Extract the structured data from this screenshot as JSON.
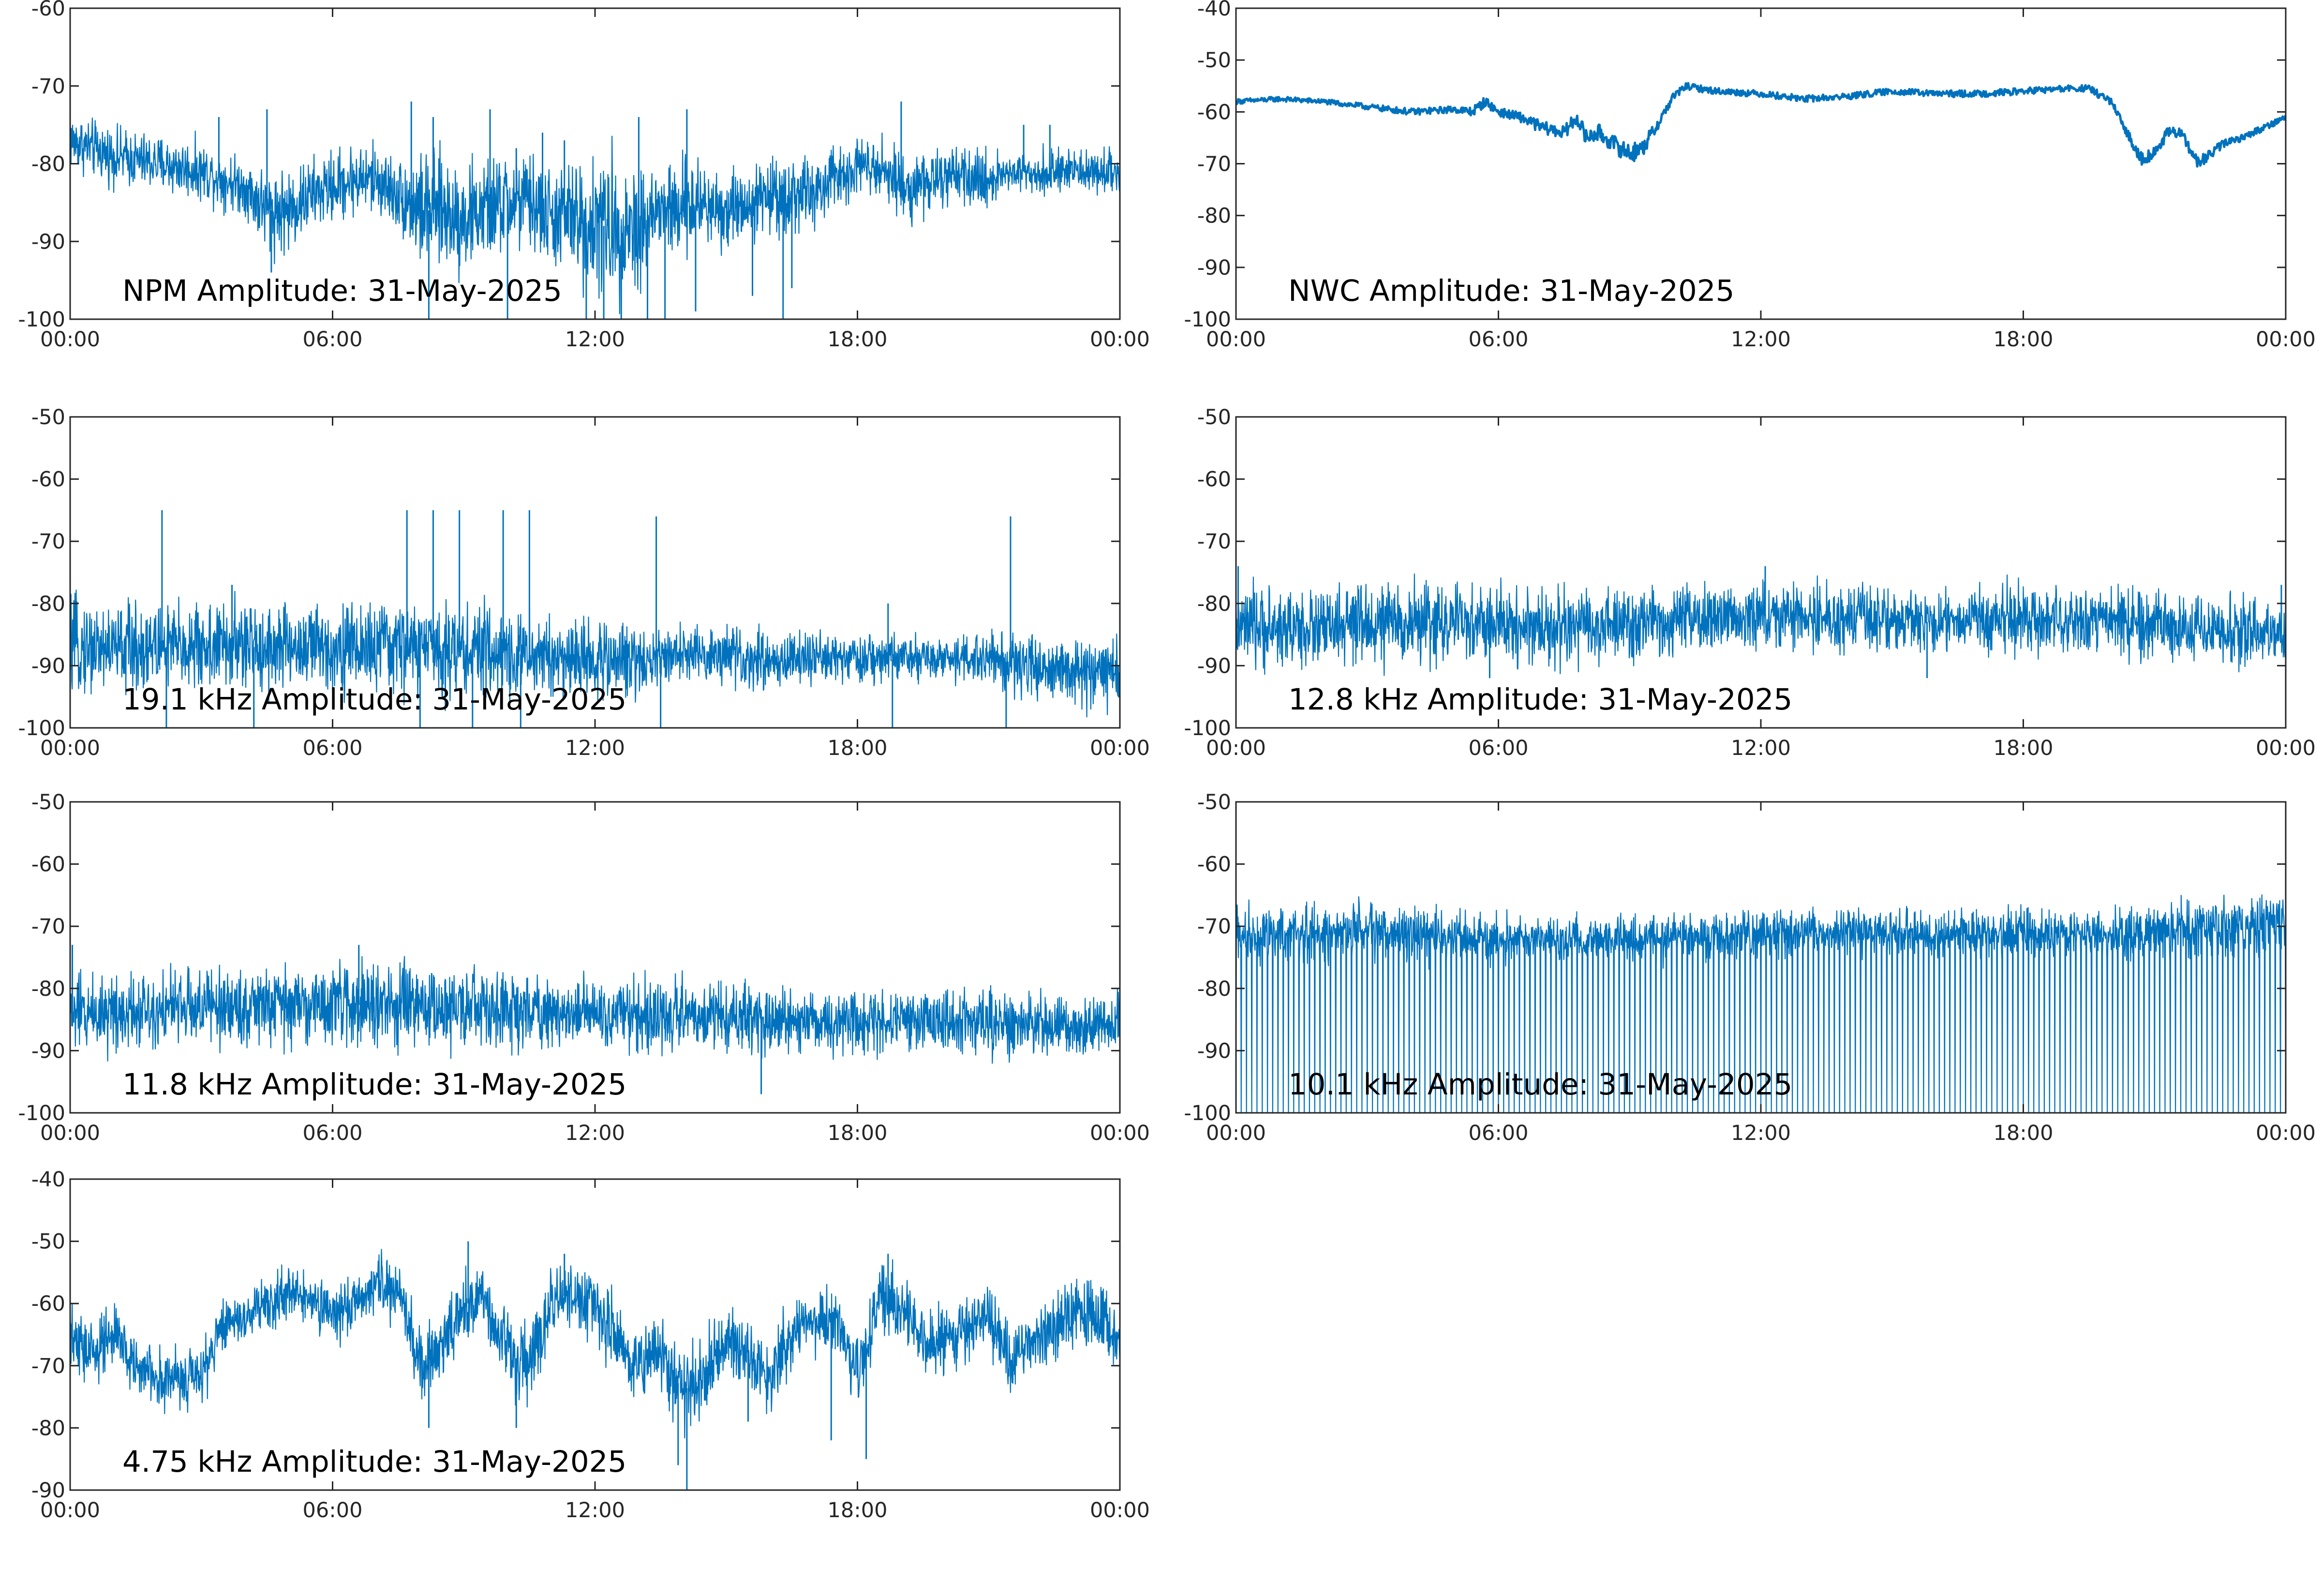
{
  "colors": {
    "series": "#0072BD",
    "axes": "#262626",
    "background": "#FFFFFF"
  },
  "chart_data": [
    {
      "type": "line",
      "title": "NPM Amplitude: 31-May-2025",
      "xticks": [
        "00:00",
        "06:00",
        "12:00",
        "18:00",
        "00:00"
      ],
      "ylim": [
        -100,
        -60
      ],
      "yticks": [
        -100,
        -90,
        -80,
        -70,
        -60
      ],
      "grid": false,
      "series": [
        {
          "x_hours": [
            0,
            1,
            2,
            3,
            4,
            4.5,
            5,
            5.5,
            6,
            6.5,
            7,
            7.5,
            8,
            8.5,
            9,
            9.5,
            10,
            10.5,
            11,
            11.5,
            12,
            12.5,
            13,
            13.5,
            14,
            14.5,
            15,
            15.5,
            16,
            16.5,
            17,
            17.5,
            18,
            18.5,
            19,
            20,
            21,
            21.5,
            22,
            23,
            24
          ],
          "center": [
            -77,
            -79,
            -80,
            -81,
            -83,
            -86,
            -86,
            -84,
            -83,
            -82,
            -82,
            -84,
            -86,
            -86,
            -87,
            -86,
            -85,
            -85,
            -87,
            -87,
            -88,
            -88,
            -88,
            -86,
            -86,
            -85,
            -86,
            -85,
            -84,
            -84,
            -84,
            -82,
            -80,
            -80,
            -83,
            -82,
            -82,
            -81,
            -81,
            -81,
            -81
          ],
          "spread": [
            4,
            4,
            4,
            4,
            4,
            6,
            6,
            5,
            5,
            5,
            5,
            5,
            8,
            8,
            8,
            7,
            7,
            7,
            7,
            8,
            10,
            10,
            9,
            7,
            7,
            6,
            6,
            5,
            5,
            6,
            5,
            5,
            4,
            4,
            5,
            4,
            4,
            3,
            3,
            3,
            3
          ],
          "spikes": [
            {
              "x": 3.4,
              "y": -74
            },
            {
              "x": 4.5,
              "y": -73
            },
            {
              "x": 4.6,
              "y": -94
            },
            {
              "x": 7.8,
              "y": -72
            },
            {
              "x": 8.2,
              "y": -100
            },
            {
              "x": 8.3,
              "y": -74
            },
            {
              "x": 9.6,
              "y": -73
            },
            {
              "x": 10.0,
              "y": -100
            },
            {
              "x": 10.2,
              "y": -78
            },
            {
              "x": 10.8,
              "y": -76
            },
            {
              "x": 11.3,
              "y": -77
            },
            {
              "x": 11.8,
              "y": -100
            },
            {
              "x": 12.2,
              "y": -100
            },
            {
              "x": 12.6,
              "y": -100
            },
            {
              "x": 13.0,
              "y": -74
            },
            {
              "x": 13.2,
              "y": -100
            },
            {
              "x": 13.6,
              "y": -100
            },
            {
              "x": 14.1,
              "y": -73
            },
            {
              "x": 14.3,
              "y": -99
            },
            {
              "x": 15.6,
              "y": -97
            },
            {
              "x": 16.3,
              "y": -100
            },
            {
              "x": 16.5,
              "y": -96
            },
            {
              "x": 19.0,
              "y": -72
            },
            {
              "x": 19.2,
              "y": -86
            },
            {
              "x": 21.8,
              "y": -75
            },
            {
              "x": 22.4,
              "y": -75
            }
          ]
        }
      ]
    },
    {
      "type": "line",
      "title": "NWC Amplitude: 31-May-2025",
      "xticks": [
        "00:00",
        "06:00",
        "12:00",
        "18:00",
        "00:00"
      ],
      "ylim": [
        -100,
        -40
      ],
      "yticks": [
        -100,
        -90,
        -80,
        -70,
        -60,
        -50,
        -40
      ],
      "grid": false,
      "series": [
        {
          "x_hours": [
            0,
            1,
            2,
            3,
            4,
            5,
            5.4,
            5.7,
            6,
            6.5,
            7,
            7.5,
            7.8,
            8,
            8.3,
            8.6,
            9,
            9.3,
            9.6,
            10,
            10.3,
            10.6,
            11,
            12,
            13,
            14,
            15,
            16,
            17,
            18,
            19,
            19.5,
            20,
            20.3,
            20.7,
            21,
            21.3,
            21.6,
            22,
            22.3,
            22.6,
            23,
            23.5,
            24
          ],
          "center": [
            -58,
            -57.5,
            -58,
            -59,
            -60,
            -59.5,
            -60,
            -58,
            -60,
            -61,
            -63,
            -64,
            -61,
            -65,
            -64,
            -66,
            -68,
            -67,
            -63,
            -57,
            -55,
            -55.5,
            -56,
            -56.5,
            -57.5,
            -57,
            -56,
            -56.5,
            -56.5,
            -56,
            -55.5,
            -55.5,
            -58,
            -63,
            -69,
            -68,
            -64,
            -64,
            -70,
            -68,
            -66,
            -65,
            -63,
            -61
          ],
          "spread": [
            0.6,
            0.6,
            0.6,
            0.7,
            0.8,
            0.8,
            1.2,
            1.2,
            1,
            1.2,
            1.5,
            1.5,
            1.8,
            2,
            2,
            2,
            2.5,
            2,
            1.5,
            1,
            0.8,
            0.8,
            0.8,
            0.8,
            0.8,
            0.8,
            0.8,
            0.8,
            0.8,
            0.8,
            0.8,
            0.8,
            1,
            1.2,
            1.5,
            1.5,
            1.2,
            1.2,
            1.5,
            1.2,
            1,
            0.8,
            0.8,
            0.8
          ],
          "spikes": []
        }
      ]
    },
    {
      "type": "line",
      "title": "19.1 kHz Amplitude: 31-May-2025",
      "xticks": [
        "00:00",
        "06:00",
        "12:00",
        "18:00",
        "00:00"
      ],
      "ylim": [
        -100,
        -50
      ],
      "yticks": [
        -100,
        -90,
        -80,
        -70,
        -60,
        -50
      ],
      "grid": false,
      "series": [
        {
          "x_hours": [
            0,
            2,
            4,
            6,
            8,
            10,
            12,
            13,
            14,
            16,
            18,
            20,
            21,
            22,
            23,
            24
          ],
          "center": [
            -87,
            -87,
            -87,
            -87,
            -87,
            -88,
            -89,
            -89,
            -88,
            -89,
            -89,
            -89,
            -89,
            -90,
            -91,
            -91
          ],
          "spread": [
            8,
            8,
            8,
            8,
            8,
            8,
            7,
            6,
            5,
            5,
            4,
            4,
            5,
            6,
            6,
            6
          ],
          "spikes": [
            {
              "x": 2.1,
              "y": -65
            },
            {
              "x": 2.2,
              "y": -100
            },
            {
              "x": 3.7,
              "y": -77
            },
            {
              "x": 4.2,
              "y": -100
            },
            {
              "x": 7.7,
              "y": -65
            },
            {
              "x": 8.0,
              "y": -100
            },
            {
              "x": 8.3,
              "y": -65
            },
            {
              "x": 8.9,
              "y": -65
            },
            {
              "x": 9.2,
              "y": -100
            },
            {
              "x": 9.9,
              "y": -65
            },
            {
              "x": 10.5,
              "y": -65
            },
            {
              "x": 10.3,
              "y": -100
            },
            {
              "x": 13.4,
              "y": -66
            },
            {
              "x": 13.5,
              "y": -100
            },
            {
              "x": 18.7,
              "y": -80
            },
            {
              "x": 18.8,
              "y": -100
            },
            {
              "x": 21.5,
              "y": -66
            },
            {
              "x": 21.4,
              "y": -100
            }
          ]
        }
      ]
    },
    {
      "type": "line",
      "title": "12.8 kHz Amplitude: 31-May-2025",
      "xticks": [
        "00:00",
        "06:00",
        "12:00",
        "18:00",
        "00:00"
      ],
      "ylim": [
        -100,
        -50
      ],
      "yticks": [
        -100,
        -90,
        -80,
        -70,
        -60,
        -50
      ],
      "grid": false,
      "series": [
        {
          "x_hours": [
            0,
            2,
            4,
            6,
            8,
            10,
            12,
            14,
            16,
            18,
            20,
            22,
            24
          ],
          "center": [
            -84,
            -84,
            -83,
            -83.5,
            -84,
            -83,
            -82,
            -82.5,
            -83,
            -82.5,
            -83,
            -84,
            -85
          ],
          "spread": [
            7,
            7,
            7,
            7,
            7,
            6,
            6,
            6,
            5,
            6,
            6,
            6,
            6
          ],
          "spikes": [
            {
              "x": 0.05,
              "y": -74
            },
            {
              "x": 5.8,
              "y": -92
            },
            {
              "x": 12.1,
              "y": -74
            },
            {
              "x": 15.8,
              "y": -92
            },
            {
              "x": 23.9,
              "y": -77
            }
          ]
        }
      ]
    },
    {
      "type": "line",
      "title": "11.8 kHz Amplitude: 31-May-2025",
      "xticks": [
        "00:00",
        "06:00",
        "12:00",
        "18:00",
        "00:00"
      ],
      "ylim": [
        -100,
        -50
      ],
      "yticks": [
        -100,
        -90,
        -80,
        -70,
        -60,
        -50
      ],
      "grid": false,
      "series": [
        {
          "x_hours": [
            0,
            2,
            4,
            6,
            8,
            10,
            12,
            14,
            16,
            18,
            20,
            22,
            24
          ],
          "center": [
            -84,
            -83,
            -83,
            -82.5,
            -83,
            -83.5,
            -84,
            -84.5,
            -85,
            -85,
            -85.5,
            -86,
            -86
          ],
          "spread": [
            7,
            7,
            7,
            7,
            7,
            7,
            6,
            6,
            6,
            5.5,
            5.5,
            5.5,
            5.5
          ],
          "spikes": [
            {
              "x": 0.05,
              "y": -73
            },
            {
              "x": 6.6,
              "y": -73
            },
            {
              "x": 15.8,
              "y": -97
            }
          ]
        }
      ]
    },
    {
      "type": "line",
      "title": "10.1 kHz Amplitude: 31-May-2025",
      "xticks": [
        "00:00",
        "06:00",
        "12:00",
        "18:00",
        "00:00"
      ],
      "ylim": [
        -100,
        -50
      ],
      "yticks": [
        -100,
        -90,
        -80,
        -70,
        -60,
        -50
      ],
      "grid": false,
      "series": [
        {
          "x_hours": [
            0,
            2,
            4,
            6,
            8,
            10,
            12,
            14,
            16,
            18,
            20,
            22,
            24
          ],
          "center": [
            -71,
            -71,
            -71,
            -72,
            -72,
            -72,
            -71,
            -71,
            -71,
            -71,
            -71,
            -70,
            -70
          ],
          "spread": [
            5,
            5,
            5,
            4,
            4,
            4,
            4,
            4,
            4,
            4,
            4,
            5,
            6
          ],
          "spikes": []
        }
      ]
    },
    {
      "type": "line",
      "title": "4.75 kHz Amplitude: 31-May-2025",
      "xticks": [
        "00:00",
        "06:00",
        "12:00",
        "18:00",
        "00:00"
      ],
      "ylim": [
        -90,
        -40
      ],
      "yticks": [
        -90,
        -80,
        -70,
        -60,
        -50,
        -40
      ],
      "grid": false,
      "series": [
        {
          "x_hours": [
            0,
            0.5,
            1,
            1.5,
            2,
            2.5,
            3,
            3.5,
            4,
            4.5,
            5,
            5.5,
            6,
            6.5,
            7,
            7.5,
            8,
            8.5,
            9,
            9.5,
            10,
            10.5,
            11,
            11.5,
            12,
            12.5,
            13,
            13.5,
            14,
            14.5,
            15,
            15.5,
            16,
            16.5,
            17,
            17.5,
            18,
            18.5,
            19,
            19.5,
            20,
            20.5,
            21,
            21.5,
            22,
            22.5,
            23,
            23.5,
            24
          ],
          "center": [
            -66,
            -68,
            -65,
            -70,
            -72,
            -72,
            -72,
            -63,
            -62,
            -60,
            -58,
            -60,
            -62,
            -60,
            -57,
            -58,
            -70,
            -68,
            -60,
            -60,
            -68,
            -70,
            -60,
            -58,
            -60,
            -66,
            -70,
            -68,
            -74,
            -72,
            -66,
            -68,
            -72,
            -65,
            -63,
            -62,
            -72,
            -60,
            -60,
            -66,
            -66,
            -64,
            -62,
            -70,
            -66,
            -64,
            -62,
            -62,
            -66
          ],
          "spread": [
            6,
            6,
            6,
            6,
            5,
            5,
            5,
            5,
            5,
            5,
            5,
            5,
            5,
            5,
            5,
            6,
            7,
            7,
            7,
            6,
            7,
            7,
            6,
            6,
            6,
            7,
            7,
            7,
            7,
            7,
            6,
            6,
            6,
            6,
            6,
            6,
            6,
            6,
            6,
            6,
            6,
            6,
            6,
            6,
            6,
            6,
            6,
            6,
            6
          ],
          "spikes": [
            {
              "x": 8.2,
              "y": -80
            },
            {
              "x": 9.1,
              "y": -50
            },
            {
              "x": 10.2,
              "y": -80
            },
            {
              "x": 11.3,
              "y": -52
            },
            {
              "x": 13.9,
              "y": -86
            },
            {
              "x": 14.1,
              "y": -90
            },
            {
              "x": 15.5,
              "y": -79
            },
            {
              "x": 17.4,
              "y": -82
            },
            {
              "x": 18.2,
              "y": -85
            },
            {
              "x": 18.7,
              "y": -52
            }
          ]
        }
      ]
    }
  ]
}
